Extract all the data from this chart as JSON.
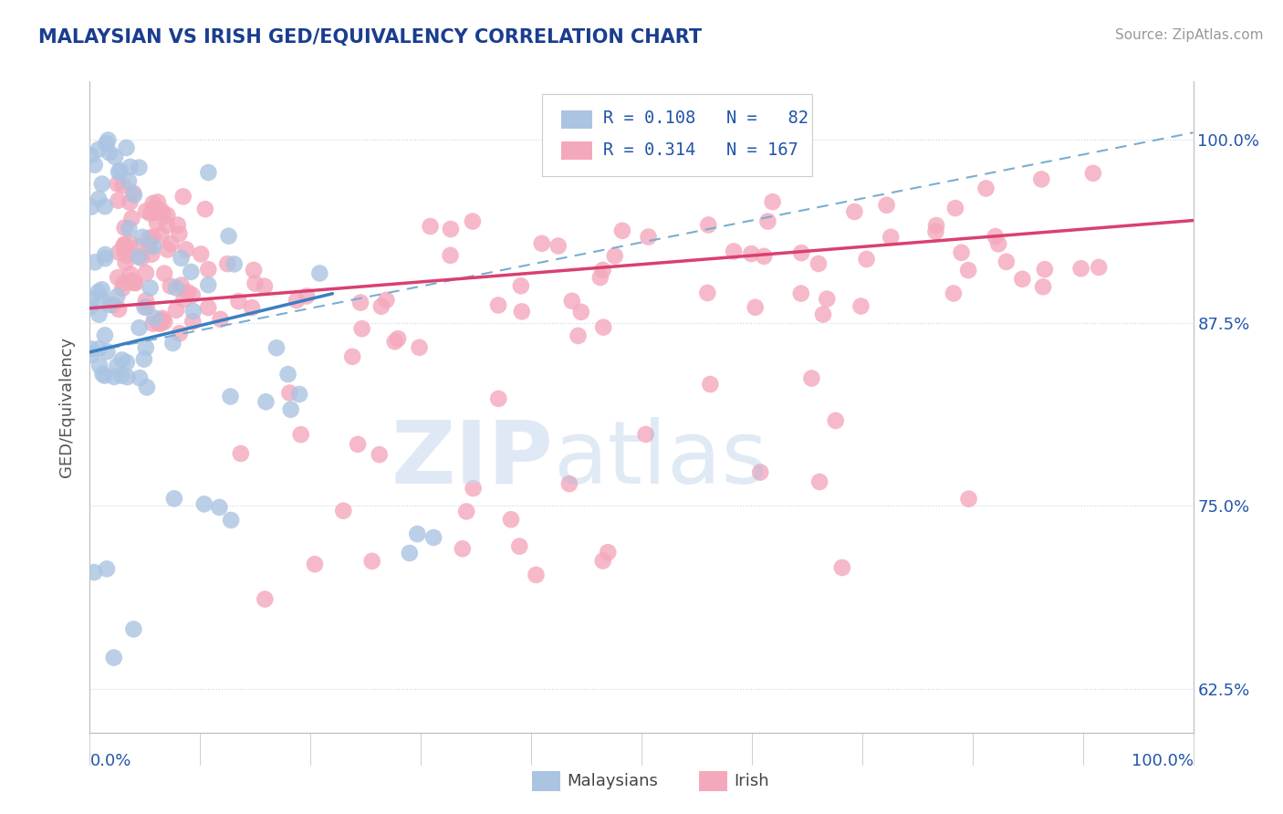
{
  "title": "MALAYSIAN VS IRISH GED/EQUIVALENCY CORRELATION CHART",
  "source": "Source: ZipAtlas.com",
  "ylabel": "GED/Equivalency",
  "ytick_labels": [
    "62.5%",
    "75.0%",
    "87.5%",
    "100.0%"
  ],
  "ytick_values": [
    0.625,
    0.75,
    0.875,
    1.0
  ],
  "xlim": [
    0.0,
    1.0
  ],
  "ylim": [
    0.595,
    1.04
  ],
  "blue_color": "#aac4e2",
  "pink_color": "#f4a8bc",
  "blue_line_color": "#3a7fc1",
  "pink_line_color": "#d94070",
  "dashed_line_color": "#7aaed0",
  "title_color": "#1a3d8f",
  "text_color": "#2255aa",
  "grid_color": "#c8d4e8",
  "background_color": "#ffffff",
  "blue_R": 0.108,
  "pink_R": 0.314,
  "blue_N": 82,
  "pink_N": 167,
  "blue_line_x": [
    0.0,
    0.22
  ],
  "blue_line_y": [
    0.855,
    0.895
  ],
  "pink_line_x": [
    0.0,
    1.0
  ],
  "pink_line_y": [
    0.885,
    0.945
  ],
  "dashed_line_x": [
    0.0,
    1.0
  ],
  "dashed_line_y": [
    0.855,
    1.005
  ]
}
